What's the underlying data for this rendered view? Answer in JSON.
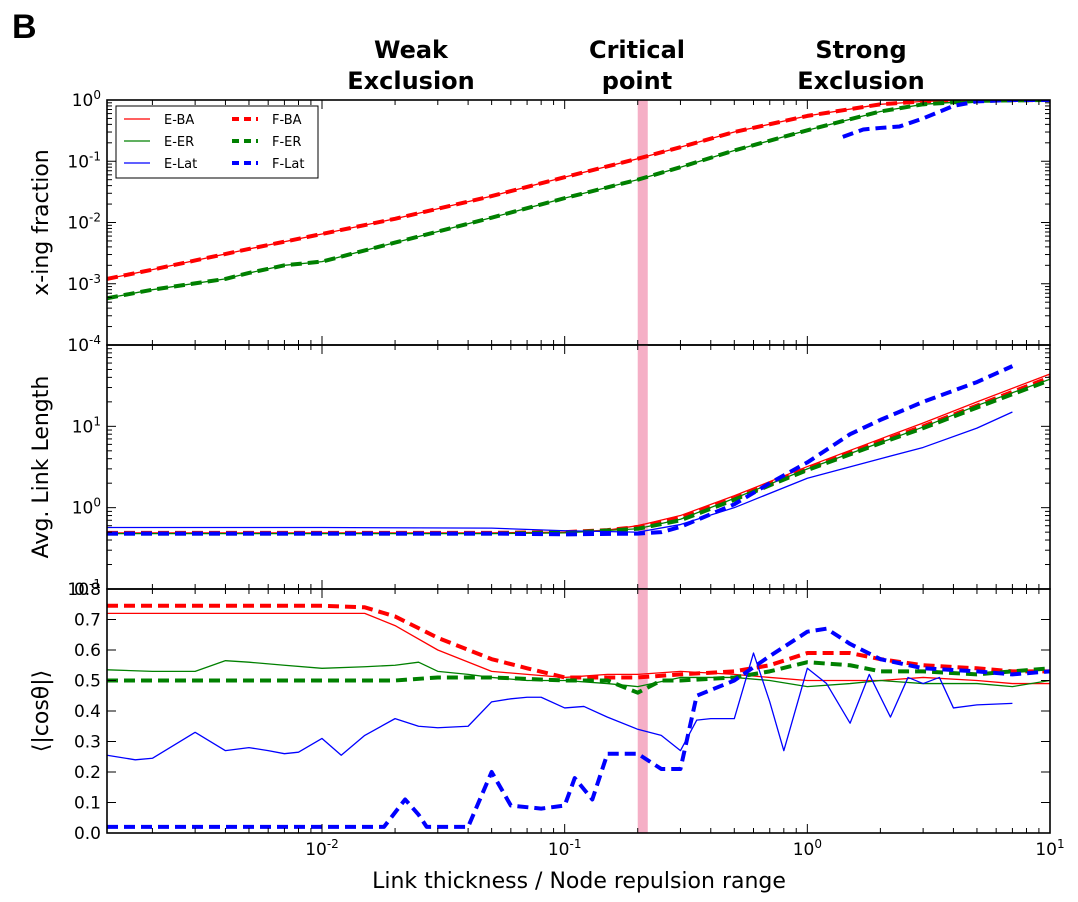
{
  "panel_label": "B",
  "region_labels": [
    {
      "id": "weak",
      "lines": [
        "Weak",
        "Exclusion"
      ]
    },
    {
      "id": "critical",
      "lines": [
        "Critical",
        "point"
      ]
    },
    {
      "id": "strong",
      "lines": [
        "Strong",
        "Exclusion"
      ]
    }
  ],
  "colors": {
    "BA": "#ff0000",
    "ER": "#008000",
    "Lat": "#0000ff",
    "critical_band": "#f4a6c0"
  },
  "chart_data": [
    {
      "id": "xing-fraction",
      "type": "line",
      "title": "",
      "xlabel": "Link thickness / Node repulsion range",
      "ylabel": "x-ing fraction",
      "xscale": "log",
      "yscale": "log",
      "xlim": [
        0.0013,
        10
      ],
      "ylim": [
        0.0001,
        1
      ],
      "xticks": [
        {
          "v": 0.01,
          "base": "10",
          "exp": "-2"
        },
        {
          "v": 0.1,
          "base": "10",
          "exp": "-1"
        },
        {
          "v": 1,
          "base": "10",
          "exp": "0"
        },
        {
          "v": 10,
          "base": "10",
          "exp": "1"
        }
      ],
      "yticks": [
        {
          "v": 0.0001,
          "base": "10",
          "exp": "-4"
        },
        {
          "v": 0.001,
          "base": "10",
          "exp": "-3"
        },
        {
          "v": 0.01,
          "base": "10",
          "exp": "-2"
        },
        {
          "v": 0.1,
          "base": "10",
          "exp": "-1"
        },
        {
          "v": 1,
          "base": "10",
          "exp": "0"
        }
      ],
      "critical_band": [
        0.2,
        0.22
      ],
      "legend": {
        "placement": "upper-left",
        "entries": [
          {
            "label": "E-BA",
            "color": "#ff0000",
            "style": "solid"
          },
          {
            "label": "F-BA",
            "color": "#ff0000",
            "style": "dashed"
          },
          {
            "label": "E-ER",
            "color": "#008000",
            "style": "solid"
          },
          {
            "label": "F-ER",
            "color": "#008000",
            "style": "dashed"
          },
          {
            "label": "E-Lat",
            "color": "#0000ff",
            "style": "solid"
          },
          {
            "label": "F-Lat",
            "color": "#0000ff",
            "style": "dashed"
          }
        ]
      },
      "series": [
        {
          "name": "E-BA",
          "color": "#ff0000",
          "style": "solid",
          "x": [
            0.0013,
            0.002,
            0.003,
            0.005,
            0.01,
            0.02,
            0.05,
            0.1,
            0.2,
            0.3,
            0.5,
            1,
            2,
            3,
            5,
            10
          ],
          "y": [
            0.0012,
            0.0017,
            0.0024,
            0.0037,
            0.0065,
            0.0115,
            0.027,
            0.055,
            0.11,
            0.17,
            0.3,
            0.55,
            0.85,
            0.95,
            0.99,
            1.0
          ]
        },
        {
          "name": "F-BA",
          "color": "#ff0000",
          "style": "dashed",
          "x": [
            0.0013,
            0.002,
            0.003,
            0.005,
            0.01,
            0.02,
            0.05,
            0.1,
            0.2,
            0.3,
            0.5,
            1,
            2,
            3,
            5,
            10
          ],
          "y": [
            0.0012,
            0.0017,
            0.0024,
            0.0037,
            0.0065,
            0.0115,
            0.027,
            0.055,
            0.11,
            0.17,
            0.3,
            0.55,
            0.85,
            0.95,
            0.99,
            1.0
          ]
        },
        {
          "name": "E-ER",
          "color": "#008000",
          "style": "solid",
          "x": [
            0.0013,
            0.002,
            0.004,
            0.005,
            0.007,
            0.01,
            0.02,
            0.05,
            0.1,
            0.2,
            0.3,
            0.5,
            1,
            2,
            3,
            5,
            10
          ],
          "y": [
            0.00058,
            0.0008,
            0.0012,
            0.0015,
            0.002,
            0.0023,
            0.0047,
            0.012,
            0.025,
            0.05,
            0.08,
            0.15,
            0.32,
            0.65,
            0.85,
            0.97,
            1.0
          ]
        },
        {
          "name": "F-ER",
          "color": "#008000",
          "style": "dashed",
          "x": [
            0.0013,
            0.002,
            0.004,
            0.005,
            0.007,
            0.01,
            0.02,
            0.05,
            0.1,
            0.2,
            0.3,
            0.5,
            1,
            2,
            3,
            5,
            10
          ],
          "y": [
            0.00058,
            0.0008,
            0.0012,
            0.0015,
            0.002,
            0.0023,
            0.0047,
            0.012,
            0.025,
            0.05,
            0.08,
            0.15,
            0.32,
            0.65,
            0.85,
            0.97,
            1.0
          ]
        },
        {
          "name": "F-Lat",
          "color": "#0000ff",
          "style": "dashed",
          "x": [
            1.4,
            1.7,
            2.0,
            2.4,
            3.0,
            4.0,
            5.0,
            7.0,
            10
          ],
          "y": [
            0.25,
            0.33,
            0.35,
            0.37,
            0.5,
            0.8,
            0.95,
            1.0,
            1.0
          ]
        }
      ]
    },
    {
      "id": "avg-link-length",
      "type": "line",
      "title": "",
      "xlabel": "Link thickness / Node repulsion range",
      "ylabel": "Avg. Link Length",
      "xscale": "log",
      "yscale": "log",
      "xlim": [
        0.0013,
        10
      ],
      "ylim": [
        0.1,
        100
      ],
      "xticks": [
        0.01,
        0.1,
        1,
        10
      ],
      "yticks": [
        {
          "v": 0.1,
          "base": "10",
          "exp": "-1"
        },
        {
          "v": 1,
          "base": "10",
          "exp": "0"
        },
        {
          "v": 10,
          "base": "10",
          "exp": "1"
        }
      ],
      "critical_band": [
        0.2,
        0.22
      ],
      "series": [
        {
          "name": "E-BA",
          "color": "#ff0000",
          "style": "solid",
          "x": [
            0.0013,
            0.01,
            0.05,
            0.1,
            0.15,
            0.2,
            0.3,
            0.5,
            1,
            2,
            3,
            5,
            10
          ],
          "y": [
            0.49,
            0.49,
            0.49,
            0.5,
            0.53,
            0.6,
            0.8,
            1.4,
            3.2,
            7.0,
            11,
            20,
            44
          ]
        },
        {
          "name": "F-BA",
          "color": "#ff0000",
          "style": "dashed",
          "x": [
            0.0013,
            0.01,
            0.05,
            0.1,
            0.15,
            0.2,
            0.3,
            0.5,
            1,
            2,
            3,
            5,
            10
          ],
          "y": [
            0.49,
            0.49,
            0.49,
            0.5,
            0.53,
            0.58,
            0.75,
            1.3,
            3.0,
            6.5,
            10,
            18,
            40
          ]
        },
        {
          "name": "E-ER",
          "color": "#008000",
          "style": "solid",
          "x": [
            0.0013,
            0.01,
            0.05,
            0.1,
            0.2,
            0.3,
            0.5,
            1,
            2,
            3,
            5,
            10
          ],
          "y": [
            0.48,
            0.48,
            0.48,
            0.49,
            0.55,
            0.72,
            1.3,
            3.0,
            6.3,
            9.8,
            18,
            38
          ]
        },
        {
          "name": "F-ER",
          "color": "#008000",
          "style": "dashed",
          "x": [
            0.0013,
            0.01,
            0.05,
            0.1,
            0.2,
            0.3,
            0.5,
            1,
            2,
            3,
            5,
            10
          ],
          "y": [
            0.48,
            0.48,
            0.48,
            0.49,
            0.55,
            0.7,
            1.25,
            2.9,
            6.2,
            9.5,
            17,
            37
          ]
        },
        {
          "name": "E-Lat",
          "color": "#0000ff",
          "style": "solid",
          "x": [
            0.0013,
            0.01,
            0.05,
            0.1,
            0.2,
            0.3,
            0.5,
            1,
            2,
            3,
            5,
            7
          ],
          "y": [
            0.57,
            0.57,
            0.56,
            0.52,
            0.5,
            0.62,
            1.0,
            2.3,
            4.0,
            5.5,
            9.5,
            15
          ]
        },
        {
          "name": "F-Lat",
          "color": "#0000ff",
          "style": "dashed",
          "x": [
            0.0013,
            0.01,
            0.05,
            0.1,
            0.2,
            0.25,
            0.3,
            0.5,
            0.7,
            1.0,
            1.5,
            2,
            3,
            5,
            7
          ],
          "y": [
            0.48,
            0.48,
            0.48,
            0.47,
            0.48,
            0.5,
            0.58,
            1.1,
            2.0,
            3.6,
            8.0,
            12,
            20,
            35,
            55
          ]
        }
      ]
    },
    {
      "id": "mean-abs-cos-theta",
      "type": "line",
      "title": "",
      "xlabel": "Link thickness / Node repulsion range",
      "ylabel": "⟨|cosθ|⟩",
      "xscale": "log",
      "yscale": "linear",
      "xlim": [
        0.0013,
        10
      ],
      "ylim": [
        0,
        0.8
      ],
      "xticks": [
        {
          "v": 0.01,
          "base": "10",
          "exp": "-2"
        },
        {
          "v": 0.1,
          "base": "10",
          "exp": "-1"
        },
        {
          "v": 1,
          "base": "10",
          "exp": "0"
        },
        {
          "v": 10,
          "base": "10",
          "exp": "1"
        }
      ],
      "yticks": [
        {
          "v": 0.0,
          "label": "0.0"
        },
        {
          "v": 0.1,
          "label": "0.1"
        },
        {
          "v": 0.2,
          "label": "0.2"
        },
        {
          "v": 0.3,
          "label": "0.3"
        },
        {
          "v": 0.4,
          "label": "0.4"
        },
        {
          "v": 0.5,
          "label": "0.5"
        },
        {
          "v": 0.6,
          "label": "0.6"
        },
        {
          "v": 0.7,
          "label": "0.7"
        },
        {
          "v": 0.8,
          "label": "0.8"
        }
      ],
      "critical_band": [
        0.2,
        0.22
      ],
      "series": [
        {
          "name": "E-BA",
          "color": "#ff0000",
          "style": "solid",
          "x": [
            0.0013,
            0.005,
            0.01,
            0.015,
            0.02,
            0.03,
            0.05,
            0.07,
            0.1,
            0.15,
            0.2,
            0.3,
            0.5,
            0.7,
            1,
            1.5,
            2,
            3,
            5,
            7,
            10
          ],
          "y": [
            0.72,
            0.72,
            0.72,
            0.72,
            0.68,
            0.6,
            0.53,
            0.52,
            0.51,
            0.52,
            0.52,
            0.53,
            0.52,
            0.51,
            0.5,
            0.5,
            0.5,
            0.51,
            0.5,
            0.49,
            0.49
          ]
        },
        {
          "name": "F-BA",
          "color": "#ff0000",
          "style": "dashed",
          "x": [
            0.0013,
            0.005,
            0.01,
            0.015,
            0.02,
            0.03,
            0.05,
            0.07,
            0.1,
            0.2,
            0.3,
            0.5,
            0.7,
            1,
            1.5,
            2,
            3,
            5,
            7,
            10
          ],
          "y": [
            0.745,
            0.745,
            0.745,
            0.74,
            0.71,
            0.64,
            0.57,
            0.54,
            0.51,
            0.51,
            0.52,
            0.53,
            0.55,
            0.59,
            0.59,
            0.57,
            0.55,
            0.54,
            0.53,
            0.53
          ]
        },
        {
          "name": "E-ER",
          "color": "#008000",
          "style": "solid",
          "x": [
            0.0013,
            0.002,
            0.003,
            0.004,
            0.005,
            0.007,
            0.01,
            0.015,
            0.02,
            0.025,
            0.03,
            0.04,
            0.05,
            0.07,
            0.1,
            0.15,
            0.2,
            0.3,
            0.5,
            0.7,
            1,
            1.5,
            2,
            3,
            5,
            7,
            10
          ],
          "y": [
            0.535,
            0.53,
            0.53,
            0.565,
            0.56,
            0.55,
            0.54,
            0.545,
            0.55,
            0.56,
            0.53,
            0.52,
            0.51,
            0.5,
            0.5,
            0.49,
            0.48,
            0.51,
            0.51,
            0.5,
            0.48,
            0.49,
            0.5,
            0.49,
            0.49,
            0.48,
            0.5
          ]
        },
        {
          "name": "F-ER",
          "color": "#008000",
          "style": "dashed",
          "x": [
            0.0013,
            0.005,
            0.01,
            0.02,
            0.03,
            0.05,
            0.1,
            0.15,
            0.2,
            0.25,
            0.3,
            0.5,
            0.7,
            1,
            1.5,
            2,
            3,
            5,
            7,
            10
          ],
          "y": [
            0.5,
            0.5,
            0.5,
            0.5,
            0.51,
            0.51,
            0.5,
            0.5,
            0.46,
            0.5,
            0.5,
            0.51,
            0.53,
            0.56,
            0.55,
            0.53,
            0.53,
            0.52,
            0.53,
            0.54
          ]
        },
        {
          "name": "E-Lat",
          "color": "#0000ff",
          "style": "solid",
          "x": [
            0.0013,
            0.0017,
            0.002,
            0.003,
            0.004,
            0.005,
            0.006,
            0.007,
            0.008,
            0.01,
            0.012,
            0.015,
            0.02,
            0.025,
            0.03,
            0.04,
            0.05,
            0.06,
            0.07,
            0.08,
            0.1,
            0.12,
            0.15,
            0.2,
            0.25,
            0.3,
            0.35,
            0.4,
            0.5,
            0.6,
            0.7,
            0.8,
            1.0,
            1.2,
            1.5,
            1.8,
            2.2,
            2.6,
            3.0,
            3.5,
            4.0,
            5.0,
            7.0
          ],
          "y": [
            0.255,
            0.24,
            0.245,
            0.33,
            0.27,
            0.28,
            0.27,
            0.26,
            0.265,
            0.31,
            0.255,
            0.32,
            0.375,
            0.35,
            0.345,
            0.35,
            0.43,
            0.44,
            0.445,
            0.445,
            0.41,
            0.415,
            0.38,
            0.34,
            0.32,
            0.27,
            0.37,
            0.375,
            0.375,
            0.59,
            0.43,
            0.27,
            0.54,
            0.49,
            0.36,
            0.52,
            0.38,
            0.51,
            0.49,
            0.51,
            0.41,
            0.42,
            0.425
          ]
        },
        {
          "name": "F-Lat",
          "color": "#0000ff",
          "style": "dashed",
          "x": [
            0.0013,
            0.005,
            0.01,
            0.015,
            0.018,
            0.022,
            0.025,
            0.027,
            0.03,
            0.035,
            0.04,
            0.05,
            0.06,
            0.08,
            0.1,
            0.11,
            0.13,
            0.15,
            0.2,
            0.25,
            0.3,
            0.35,
            0.5,
            0.7,
            1.0,
            1.2,
            1.5,
            2.0,
            3.0,
            5.0,
            7.0,
            10
          ],
          "y": [
            0.02,
            0.02,
            0.02,
            0.02,
            0.02,
            0.11,
            0.06,
            0.02,
            0.02,
            0.02,
            0.02,
            0.2,
            0.09,
            0.08,
            0.09,
            0.18,
            0.11,
            0.26,
            0.26,
            0.21,
            0.21,
            0.45,
            0.5,
            0.58,
            0.66,
            0.67,
            0.62,
            0.57,
            0.54,
            0.53,
            0.52,
            0.53
          ]
        }
      ]
    }
  ]
}
